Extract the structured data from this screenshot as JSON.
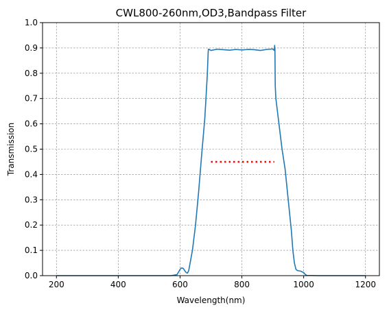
{
  "chart_data": {
    "type": "line",
    "title": "CWL800-260nm,OD3,Bandpass Filter",
    "xlabel": "Wavelength(nm)",
    "ylabel": "Transmission",
    "xlim": [
      155,
      1245
    ],
    "ylim": [
      0.0,
      1.0
    ],
    "xticks": [
      200,
      400,
      600,
      800,
      1000,
      1200
    ],
    "yticks": [
      0.0,
      0.1,
      0.2,
      0.3,
      0.4,
      0.5,
      0.6,
      0.7,
      0.8,
      0.9,
      1.0
    ],
    "xtick_labels": [
      "200",
      "400",
      "600",
      "800",
      "1000",
      "1200"
    ],
    "ytick_labels": [
      "0.0",
      "0.1",
      "0.2",
      "0.3",
      "0.4",
      "0.5",
      "0.6",
      "0.7",
      "0.8",
      "0.9",
      "1.0"
    ],
    "grid": true,
    "series": [
      {
        "color": "#1f77b4",
        "style": "solid",
        "x": [
          200,
          300,
          400,
          500,
          570,
          590,
          596,
          600,
          604,
          608,
          612,
          616,
          620,
          624,
          628,
          640,
          650,
          660,
          670,
          680,
          688,
          691,
          692,
          693,
          700,
          720,
          740,
          760,
          780,
          800,
          820,
          840,
          860,
          880,
          900,
          905,
          906,
          907,
          908,
          910,
          912,
          920,
          930,
          940,
          950,
          960,
          965,
          970,
          975,
          980,
          990,
          1000,
          1005,
          1010,
          1050,
          1100,
          1200
        ],
        "y": [
          0.0,
          0.0,
          0.0,
          0.0,
          0.0,
          0.004,
          0.016,
          0.025,
          0.03,
          0.03,
          0.026,
          0.018,
          0.012,
          0.01,
          0.02,
          0.1,
          0.2,
          0.33,
          0.48,
          0.62,
          0.79,
          0.885,
          0.895,
          0.895,
          0.89,
          0.895,
          0.893,
          0.891,
          0.894,
          0.892,
          0.894,
          0.893,
          0.89,
          0.894,
          0.896,
          0.89,
          0.91,
          0.895,
          0.75,
          0.7,
          0.68,
          0.6,
          0.5,
          0.42,
          0.3,
          0.18,
          0.1,
          0.05,
          0.025,
          0.02,
          0.018,
          0.012,
          0.005,
          0.001,
          0.0,
          0.0,
          0.0
        ]
      },
      {
        "color": "#ff0000",
        "style": "dotted",
        "x": [
          700,
          905
        ],
        "y": [
          0.45,
          0.45
        ]
      }
    ]
  }
}
